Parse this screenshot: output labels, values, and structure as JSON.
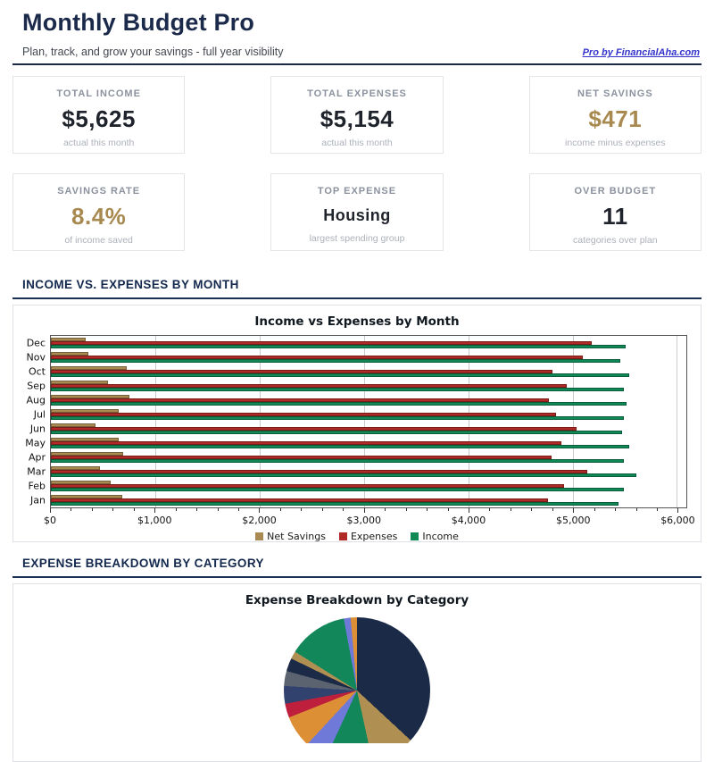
{
  "header": {
    "title": "Monthly Budget Pro",
    "subtitle": "Plan, track, and grow your savings - full year visibility",
    "link_label": "Pro by FinancialAha.com"
  },
  "stats": [
    {
      "label": "TOTAL INCOME",
      "value": "$5,625",
      "sub": "actual this month"
    },
    {
      "label": "TOTAL EXPENSES",
      "value": "$5,154",
      "sub": "actual this month"
    },
    {
      "label": "NET SAVINGS",
      "value": "$471",
      "sub": "income minus expenses"
    },
    {
      "label": "SAVINGS RATE",
      "value": "8.4%",
      "sub": "of income saved"
    },
    {
      "label": "TOP EXPENSE",
      "value": "Housing",
      "sub": "largest spending group"
    },
    {
      "label": "OVER BUDGET",
      "value": "11",
      "sub": "categories over plan"
    }
  ],
  "sections": {
    "bar": "INCOME VS. EXPENSES BY MONTH",
    "pie": "EXPENSE BREAKDOWN BY CATEGORY"
  },
  "colors": {
    "accent_navy": "#1b2a4a",
    "accent_gold": "#a8894f",
    "link_blue": "#3333cc",
    "net_savings": "#a98a52",
    "expenses": "#b02b27",
    "income": "#0f8a57"
  },
  "chart_data": [
    {
      "type": "bar",
      "orientation": "horizontal",
      "title": "Income vs Expenses by Month",
      "categories_top_to_bottom": [
        "Dec",
        "Nov",
        "Oct",
        "Sep",
        "Aug",
        "Jul",
        "Jun",
        "May",
        "Apr",
        "Mar",
        "Feb",
        "Jan"
      ],
      "series": [
        {
          "name": "Net Savings",
          "color": "#a98a52",
          "edge": "#77603a",
          "values": [
            330,
            360,
            730,
            550,
            750,
            650,
            430,
            650,
            690,
            470,
            570,
            680
          ]
        },
        {
          "name": "Expenses",
          "color": "#b02b27",
          "edge": "#7a1b18",
          "values": [
            5180,
            5100,
            4810,
            4940,
            4770,
            4840,
            5040,
            4890,
            4800,
            5140,
            4920,
            4760
          ]
        },
        {
          "name": "Income",
          "color": "#0f8a57",
          "edge": "#095c39",
          "values": [
            5510,
            5460,
            5540,
            5490,
            5520,
            5490,
            5470,
            5540,
            5490,
            5610,
            5490,
            5440
          ]
        }
      ],
      "xlim": [
        0,
        6090
      ],
      "x_tick_values": [
        0,
        1000,
        2000,
        3000,
        4000,
        5000,
        6000
      ],
      "x_tick_labels": [
        "$0",
        "$1,000",
        "$2,000",
        "$3,000",
        "$4,000",
        "$5,000",
        "$6,000"
      ],
      "minor_tick_step": 200,
      "grid": "vertical-major",
      "legend_position": "bottom"
    },
    {
      "type": "pie",
      "title": "Expense Breakdown by Category",
      "labels_visible": false,
      "slices": [
        {
          "color": "#1b2a47",
          "percent": 36.9
        },
        {
          "color": "#b08f52",
          "percent": 9.7
        },
        {
          "color": "#12875a",
          "percent": 10.3
        },
        {
          "color": "#6f79d8",
          "percent": 5.0
        },
        {
          "color": "#dd8f35",
          "percent": 7.1
        },
        {
          "color": "#bd1f3c",
          "percent": 3.1
        },
        {
          "color": "#31426e",
          "percent": 3.9
        },
        {
          "color": "#5b6370",
          "percent": 3.3
        },
        {
          "color": "#1b2a47",
          "percent": 2.9
        },
        {
          "color": "#b08f52",
          "percent": 1.7
        },
        {
          "color": "#12875a",
          "percent": 13.2
        },
        {
          "color": "#6f79d8",
          "percent": 1.5
        },
        {
          "color": "#dd8f35",
          "percent": 1.4
        }
      ]
    }
  ]
}
